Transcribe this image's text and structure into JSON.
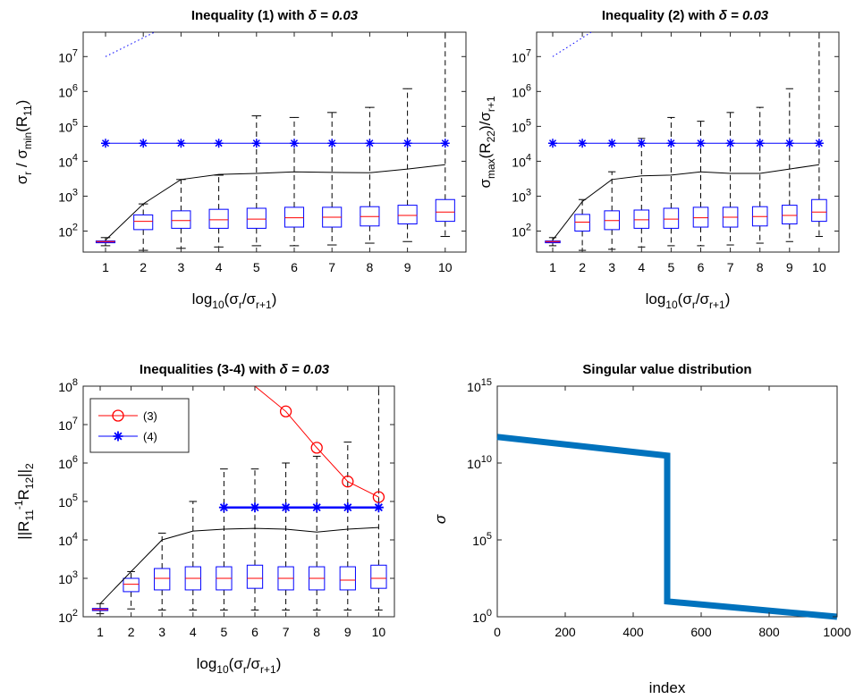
{
  "colors": {
    "box": "#0000ff",
    "median": "#ff0000",
    "whisker": "#000000",
    "bound": "#0000ff",
    "ineq3": "#ff0000",
    "maxline": "#000000",
    "first_box_fill": "#cc66cc",
    "singular": "#0072bd"
  },
  "chart_data": [
    {
      "type": "box",
      "title_prefix": "Inequality (1) with ",
      "title_delta": "δ = 0.03",
      "ylabel": "σ_r / σ_min(R_11)",
      "xlabel": "log_10(σ_r/σ_{r+1})",
      "categories": [
        1,
        2,
        3,
        4,
        5,
        6,
        7,
        8,
        9,
        10
      ],
      "y_scale": "log",
      "ylim": [
        25,
        50000000
      ],
      "yticks": [
        100,
        1000,
        10000,
        100000,
        1000000,
        10000000
      ],
      "ytick_labels": [
        "10^2",
        "10^3",
        "10^4",
        "10^5",
        "10^6",
        "10^7"
      ],
      "boxes": [
        {
          "min": 38,
          "q1": 47,
          "median": 50,
          "q3": 52,
          "max": 65
        },
        {
          "min": 28,
          "q1": 110,
          "median": 190,
          "q3": 290,
          "max": 600
        },
        {
          "min": 32,
          "q1": 120,
          "median": 200,
          "q3": 380,
          "max": 3000
        },
        {
          "min": 35,
          "q1": 120,
          "median": 210,
          "q3": 420,
          "max": 4000
        },
        {
          "min": 38,
          "q1": 120,
          "median": 220,
          "q3": 450,
          "max": 200000
        },
        {
          "min": 38,
          "q1": 130,
          "median": 240,
          "q3": 480,
          "max": 180000
        },
        {
          "min": 40,
          "q1": 130,
          "median": 250,
          "q3": 480,
          "max": 250000
        },
        {
          "min": 45,
          "q1": 140,
          "median": 260,
          "q3": 500,
          "max": 350000
        },
        {
          "min": 50,
          "q1": 160,
          "median": 280,
          "q3": 550,
          "max": 1200000
        },
        {
          "min": 70,
          "q1": 190,
          "median": 350,
          "q3": 800,
          "max": 50000000
        }
      ],
      "max_line": [
        55,
        600,
        3000,
        4200,
        4500,
        5000,
        4800,
        4700,
        6000,
        8000
      ],
      "bound": [
        33000,
        33000,
        33000,
        33000,
        33000,
        33000,
        33000,
        33000,
        33000,
        33000
      ],
      "dotted": {
        "x": [
          1,
          2.3
        ],
        "y": [
          10000000,
          50000000
        ]
      }
    },
    {
      "type": "box",
      "title_prefix": "Inequality (2) with ",
      "title_delta": "δ = 0.03",
      "ylabel": "σ_max(R_22)/σ_{r+1}",
      "xlabel": "log_10(σ_r/σ_{r+1})",
      "categories": [
        1,
        2,
        3,
        4,
        5,
        6,
        7,
        8,
        9,
        10
      ],
      "y_scale": "log",
      "ylim": [
        25,
        50000000
      ],
      "yticks": [
        100,
        1000,
        10000,
        100000,
        1000000,
        10000000
      ],
      "ytick_labels": [
        "10^2",
        "10^3",
        "10^4",
        "10^5",
        "10^6",
        "10^7"
      ],
      "boxes": [
        {
          "min": 38,
          "q1": 47,
          "median": 50,
          "q3": 52,
          "max": 65
        },
        {
          "min": 28,
          "q1": 100,
          "median": 180,
          "q3": 300,
          "max": 800
        },
        {
          "min": 30,
          "q1": 110,
          "median": 200,
          "q3": 380,
          "max": 5000
        },
        {
          "min": 35,
          "q1": 120,
          "median": 210,
          "q3": 400,
          "max": 45000
        },
        {
          "min": 38,
          "q1": 120,
          "median": 220,
          "q3": 450,
          "max": 180000
        },
        {
          "min": 38,
          "q1": 130,
          "median": 240,
          "q3": 480,
          "max": 140000
        },
        {
          "min": 40,
          "q1": 130,
          "median": 250,
          "q3": 480,
          "max": 250000
        },
        {
          "min": 45,
          "q1": 140,
          "median": 260,
          "q3": 500,
          "max": 350000
        },
        {
          "min": 50,
          "q1": 160,
          "median": 280,
          "q3": 550,
          "max": 1200000
        },
        {
          "min": 70,
          "q1": 190,
          "median": 350,
          "q3": 800,
          "max": 50000000
        }
      ],
      "max_line": [
        55,
        700,
        3000,
        3800,
        4000,
        5000,
        4500,
        4500,
        6000,
        8000
      ],
      "bound": [
        33000,
        33000,
        33000,
        33000,
        33000,
        33000,
        33000,
        33000,
        33000,
        33000
      ],
      "dotted": {
        "x": [
          1,
          2.3
        ],
        "y": [
          10000000,
          50000000
        ]
      }
    },
    {
      "type": "box",
      "title_prefix": "Inequalities (3-4) with ",
      "title_delta": "δ = 0.03",
      "ylabel": "||R_11^{-1} R_12||_2",
      "xlabel": "log_10(σ_r/σ_{r+1})",
      "categories": [
        1,
        2,
        3,
        4,
        5,
        6,
        7,
        8,
        9,
        10
      ],
      "y_scale": "log",
      "ylim": [
        100,
        100000000
      ],
      "yticks": [
        100,
        1000,
        10000,
        100000,
        1000000,
        10000000,
        100000000
      ],
      "ytick_labels": [
        "10^2",
        "10^3",
        "10^4",
        "10^5",
        "10^6",
        "10^7",
        "10^8"
      ],
      "boxes": [
        {
          "min": 120,
          "q1": 145,
          "median": 155,
          "q3": 165,
          "max": 220
        },
        {
          "min": 160,
          "q1": 450,
          "median": 700,
          "q3": 1000,
          "max": 1500
        },
        {
          "min": 150,
          "q1": 500,
          "median": 1000,
          "q3": 1800,
          "max": 15000
        },
        {
          "min": 150,
          "q1": 500,
          "median": 1000,
          "q3": 2000,
          "max": 100000
        },
        {
          "min": 150,
          "q1": 500,
          "median": 1000,
          "q3": 2000,
          "max": 700000
        },
        {
          "min": 150,
          "q1": 550,
          "median": 1000,
          "q3": 2200,
          "max": 700000
        },
        {
          "min": 150,
          "q1": 500,
          "median": 1000,
          "q3": 2000,
          "max": 1000000
        },
        {
          "min": 150,
          "q1": 500,
          "median": 1000,
          "q3": 2000,
          "max": 1500000
        },
        {
          "min": 150,
          "q1": 500,
          "median": 900,
          "q3": 2000,
          "max": 3500000
        },
        {
          "min": 150,
          "q1": 550,
          "median": 1000,
          "q3": 2200,
          "max": 100000000
        }
      ],
      "max_line": [
        220,
        1500,
        10000,
        17000,
        19000,
        20000,
        19000,
        16000,
        19000,
        21000
      ],
      "series": [
        {
          "name": "(3)",
          "x": [
            6,
            7,
            8,
            9,
            10
          ],
          "y": [
            100000000,
            22000000,
            2500000,
            330000,
            130000
          ],
          "marker": "circle"
        },
        {
          "name": "(4)",
          "x": [
            5,
            6,
            7,
            8,
            9,
            10
          ],
          "y": [
            70000,
            70000,
            70000,
            70000,
            70000,
            70000
          ],
          "marker": "star"
        }
      ]
    },
    {
      "type": "line",
      "title": "Singular value distribution",
      "xlabel": "index",
      "ylabel": "σ",
      "xlim": [
        0,
        1000
      ],
      "xticks": [
        0,
        200,
        400,
        600,
        800,
        1000
      ],
      "y_scale": "log",
      "ylim": [
        1,
        1000000000000000
      ],
      "yticks": [
        1,
        100000,
        10000000000,
        1000000000000000
      ],
      "ytick_labels": [
        "10^0",
        "10^5",
        "10^10",
        "10^15"
      ],
      "x": [
        0,
        500,
        500,
        1000
      ],
      "y": [
        500000000000,
        30000000000,
        10,
        1
      ]
    }
  ]
}
